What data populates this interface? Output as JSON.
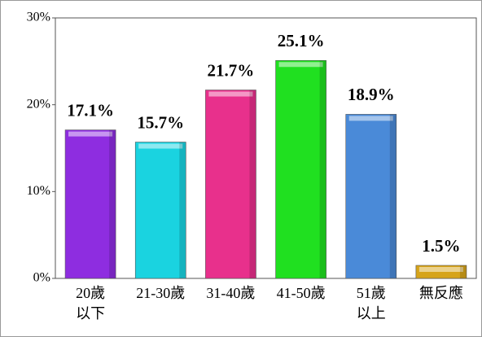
{
  "chart_data": {
    "type": "bar",
    "categories": [
      [
        "20歲",
        "以下"
      ],
      [
        "21-30歲"
      ],
      [
        "31-40歲"
      ],
      [
        "41-50歲"
      ],
      [
        "51歲",
        "以上"
      ],
      [
        "無反應"
      ]
    ],
    "values": [
      17.1,
      15.7,
      21.7,
      25.1,
      18.9,
      1.5
    ],
    "value_labels": [
      "17.1%",
      "15.7%",
      "21.7%",
      "25.1%",
      "18.9%",
      "1.5%"
    ],
    "colors": [
      "#8e2de0",
      "#1ad3e0",
      "#e8308c",
      "#20e020",
      "#4a8ad8",
      "#d6a41a"
    ],
    "ylim": [
      0,
      30
    ],
    "yticks": [
      {
        "value": 0,
        "label": "0%"
      },
      {
        "value": 10,
        "label": "10%"
      },
      {
        "value": 20,
        "label": "20%"
      },
      {
        "value": 30,
        "label": "30%"
      }
    ]
  }
}
